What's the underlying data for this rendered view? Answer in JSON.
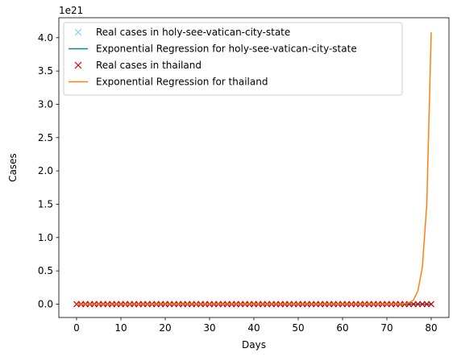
{
  "chart_data": {
    "type": "line",
    "xlabel": "Days",
    "ylabel": "Cases",
    "offset_text": "1e21",
    "xlim": [
      -4,
      84
    ],
    "ylim": [
      -0.2,
      4.3
    ],
    "x_ticks": [
      0,
      10,
      20,
      30,
      40,
      50,
      60,
      70,
      80
    ],
    "x_tick_labels": [
      "0",
      "10",
      "20",
      "30",
      "40",
      "50",
      "60",
      "70",
      "80"
    ],
    "y_ticks": [
      0.0,
      0.5,
      1.0,
      1.5,
      2.0,
      2.5,
      3.0,
      3.5,
      4.0
    ],
    "y_tick_labels": [
      "0.0",
      "0.5",
      "1.0",
      "1.5",
      "2.0",
      "2.5",
      "3.0",
      "3.5",
      "4.0"
    ],
    "grid": false,
    "legend_position": "top-left",
    "series": [
      {
        "name": "Real cases in holy-see-vatican-city-state",
        "kind": "markers",
        "marker": "x",
        "color": "#87ceeb",
        "x_start": 1,
        "x_end": 80,
        "y_constant": 0
      },
      {
        "name": "Exponential Regression for holy-see-vatican-city-state",
        "kind": "line",
        "color": "#008b8b",
        "x": [
          0,
          80
        ],
        "y": [
          0,
          0
        ]
      },
      {
        "name": "Real cases in thailand",
        "kind": "markers",
        "marker": "x",
        "color": "#cc0000",
        "x_start": 0,
        "x_end": 80,
        "y_constant": 0
      },
      {
        "name": "Exponential Regression for thailand",
        "kind": "line",
        "color": "#ff7f0e",
        "x": [
          0,
          72,
          73,
          74,
          75,
          76,
          77,
          78,
          79,
          80
        ],
        "y": [
          0,
          0.001,
          0.003,
          0.008,
          0.022,
          0.06,
          0.2,
          0.55,
          1.5,
          4.08
        ]
      }
    ]
  }
}
